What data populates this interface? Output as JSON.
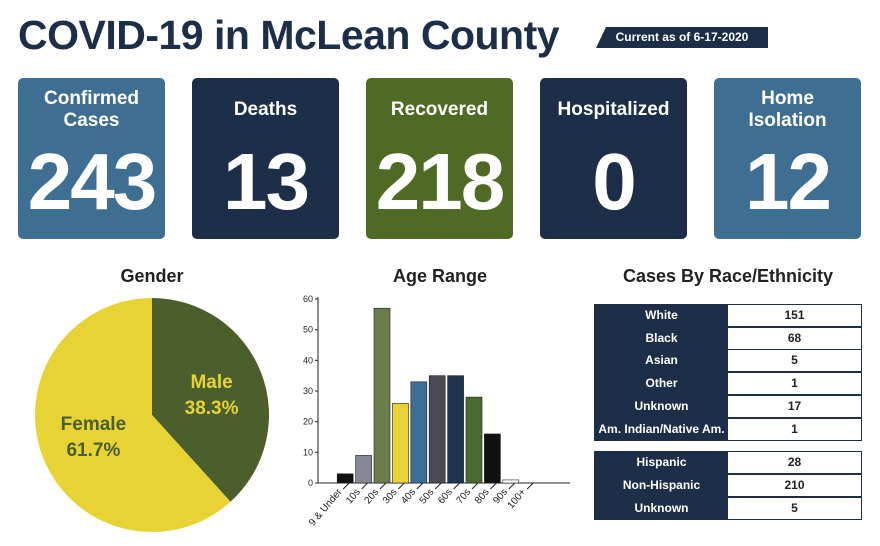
{
  "header": {
    "title": "COVID-19 in McLean County",
    "updated": "Current as of 6-17-2020"
  },
  "cards": [
    {
      "label": "Confirmed Cases",
      "value": 243,
      "color": "#3f6e93"
    },
    {
      "label": "Deaths",
      "value": 13,
      "color": "#1d2e48"
    },
    {
      "label": "Recovered",
      "value": 218,
      "color": "#4f6a24"
    },
    {
      "label": "Hospitalized",
      "value": 0,
      "color": "#1d2e48"
    },
    {
      "label": "Home Isolation",
      "value": 12,
      "color": "#3f6e93"
    }
  ],
  "chart_data": [
    {
      "type": "pie",
      "title": "Gender",
      "categories": [
        "Male",
        "Female"
      ],
      "values": [
        38.3,
        61.7
      ],
      "value_labels": [
        "38.3%",
        "61.7%"
      ],
      "colors": [
        "#4a5f2b",
        "#e8d335"
      ]
    },
    {
      "type": "bar",
      "title": "Age Range",
      "categories": [
        "9 & Under",
        "10s",
        "20s",
        "30s",
        "40s",
        "50s",
        "60s",
        "70s",
        "80s",
        "90s",
        "100+"
      ],
      "values": [
        3,
        9,
        57,
        26,
        33,
        35,
        35,
        28,
        16,
        1,
        0
      ],
      "colors": [
        "#111111",
        "#878896",
        "#6b7d4c",
        "#e8d335",
        "#3e6d95",
        "#4a4a52",
        "#1f3450",
        "#4b6a2f",
        "#111111",
        "#ffffff",
        "#ffffff"
      ],
      "ylim": [
        0,
        60
      ],
      "yticks": [
        0,
        10,
        20,
        30,
        40,
        50,
        60
      ]
    }
  ],
  "table": {
    "title": "Cases By Race/Ethnicity",
    "groups": [
      [
        [
          "White",
          151
        ],
        [
          "Black",
          68
        ],
        [
          "Asian",
          5
        ],
        [
          "Other",
          1
        ],
        [
          "Unknown",
          17
        ],
        [
          "Am. Indian/Native Am.",
          1
        ]
      ],
      [
        [
          "Hispanic",
          28
        ],
        [
          "Non-Hispanic",
          210
        ],
        [
          "Unknown",
          5
        ]
      ]
    ]
  }
}
